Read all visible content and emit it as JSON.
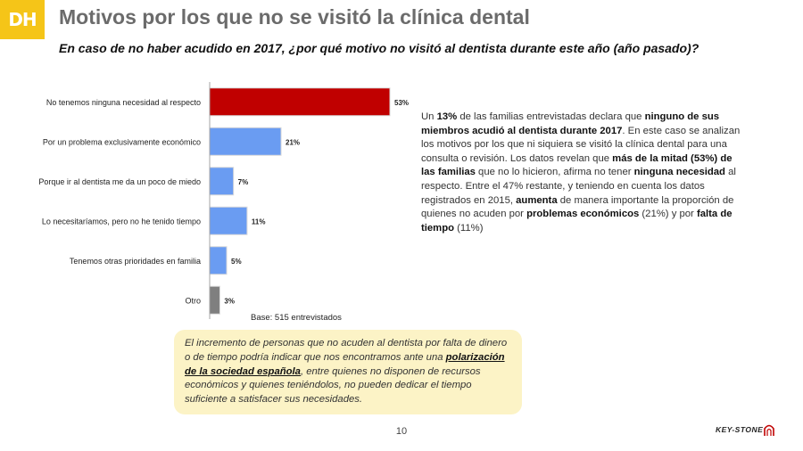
{
  "logo": {
    "text": "DH"
  },
  "title": "Motivos por los que no se visitó la clínica dental",
  "subtitle": "En caso de no haber acudido en 2017, ¿por qué motivo no visitó al dentista durante este año (año pasado)?",
  "chart_data": {
    "type": "bar",
    "orientation": "horizontal",
    "categories": [
      "No tenemos ninguna necesidad al respecto",
      "Por un problema exclusivamente económico",
      "Porque ir al dentista me da un poco de miedo",
      "Lo necesitaríamos, pero no he tenido tiempo",
      "Tenemos otras prioridades en familia",
      "Otro"
    ],
    "values": [
      53,
      21,
      7,
      11,
      5,
      3
    ],
    "value_labels": [
      "53%",
      "21%",
      "7%",
      "11%",
      "5%",
      "3%"
    ],
    "unit": "%",
    "xlim": [
      0,
      53
    ],
    "bar_colors": [
      "#c00000",
      "#6a9cf2",
      "#6a9cf2",
      "#6a9cf2",
      "#6a9cf2",
      "#7f7f7f"
    ],
    "grid": false,
    "legend": "none"
  },
  "base_note": "Base: 515 entrevistados",
  "explanation": [
    {
      "t": "Un "
    },
    {
      "t": "13%",
      "b": true
    },
    {
      "t": " de las familias entrevistadas declara que "
    },
    {
      "t": "ninguno de sus miembros acudió al dentista durante 2017",
      "b": true
    },
    {
      "t": ". En este caso se analizan los motivos por los que ni siquiera se visitó la clínica dental para una consulta o revisión. Los datos revelan que "
    },
    {
      "t": "más de la mitad (53%) de las familias",
      "b": true
    },
    {
      "t": " que no lo hicieron, afirma no tener "
    },
    {
      "t": "ninguna necesidad",
      "b": true
    },
    {
      "t": " al respecto. Entre el 47% restante, y teniendo en cuenta los datos registrados en 2015, "
    },
    {
      "t": "aumenta",
      "b": true
    },
    {
      "t": " de manera importante la proporción de quienes no acuden por "
    },
    {
      "t": "problemas económicos",
      "b": true
    },
    {
      "t": " (21%) y por "
    },
    {
      "t": "falta de tiempo",
      "b": true
    },
    {
      "t": " (11%)"
    }
  ],
  "callout": [
    {
      "t": "El incremento de personas que no acuden al dentista por falta de dinero o de tiempo podría indicar que nos encontramos ante una "
    },
    {
      "t": "polarización de la sociedad española",
      "b": true
    },
    {
      "t": ", entre quienes no disponen de recursos económicos y quienes teniéndolos, no pueden dedicar el tiempo suficiente a satisfacer sus necesidades."
    }
  ],
  "page_number": "10",
  "brand": {
    "name": "KEY-STONE",
    "icon": "keystone-arch-icon"
  }
}
